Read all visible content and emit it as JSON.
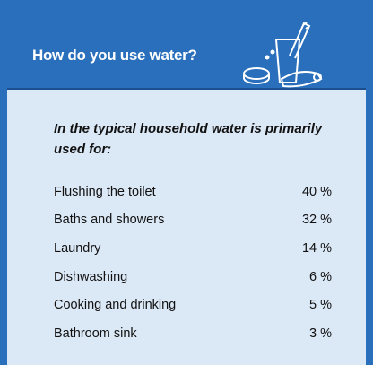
{
  "header": {
    "title": "How do you use water?"
  },
  "intro": "In the typical household water is primarily used for:",
  "table": {
    "rows": [
      [
        "Flushing the toilet",
        "40 %"
      ],
      [
        "Baths and showers",
        "32 %"
      ],
      [
        "Laundry",
        "14 %"
      ],
      [
        "Dishwashing",
        "6 %"
      ],
      [
        "Cooking and drinking",
        "5 %"
      ],
      [
        "Bathroom sink",
        "3 %"
      ]
    ]
  }
}
